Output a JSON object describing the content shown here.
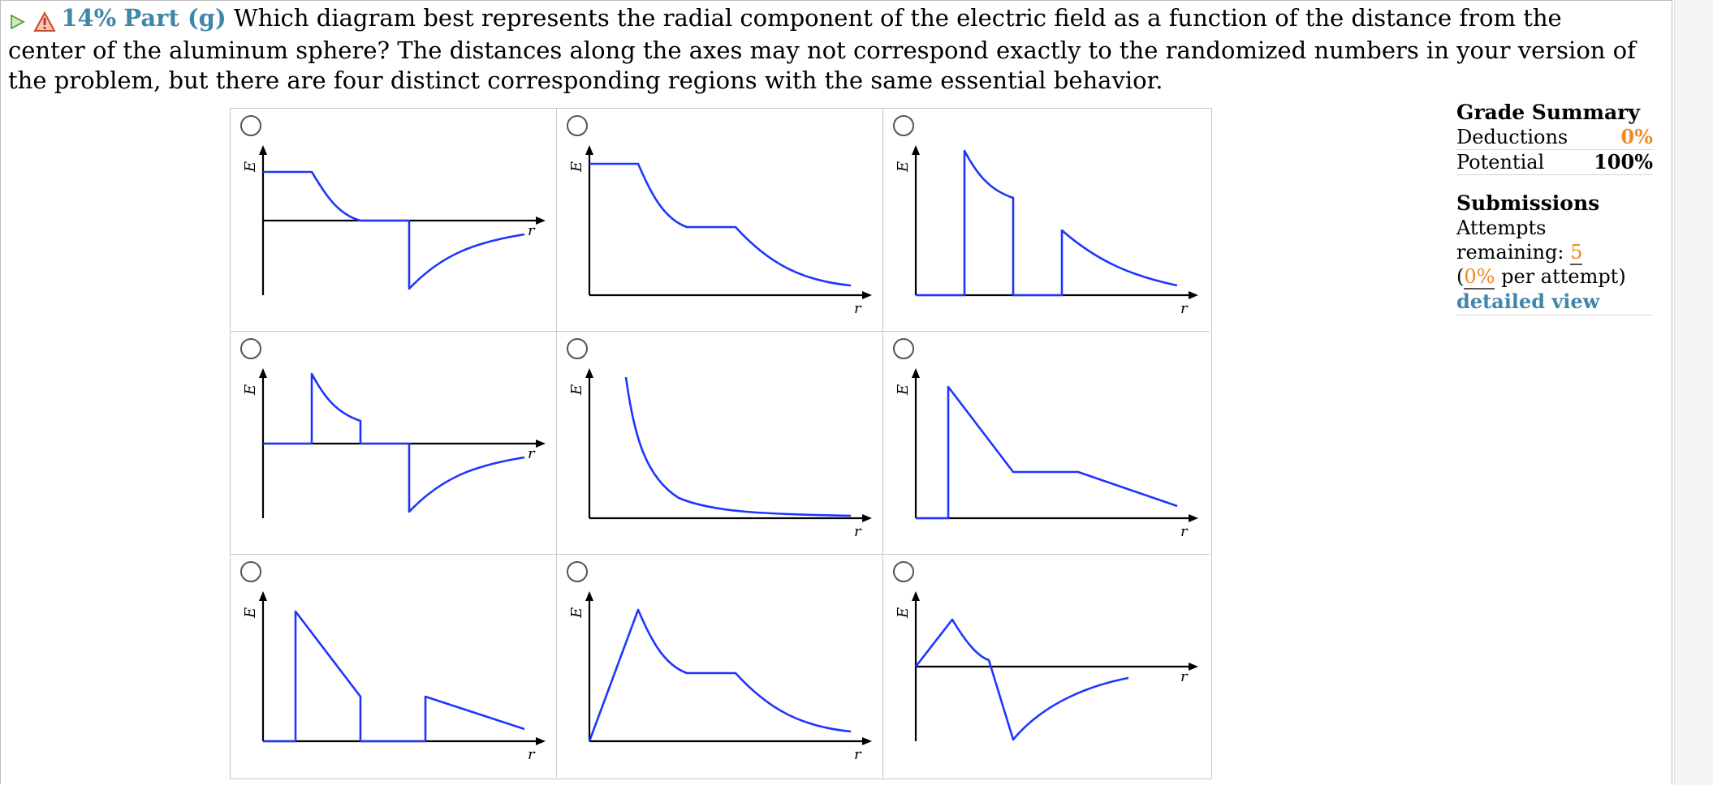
{
  "question": {
    "percent": "14%",
    "part": "Part (g)",
    "text": "Which diagram best represents the radial component of the electric field as a function of the distance from the center of the aluminum sphere? The distances along the axes may not correspond exactly to the randomized numbers in your version of the problem, but there are four distinct corresponding regions with the same essential behavior."
  },
  "plots": {
    "y_label": "E",
    "x_label": "r"
  },
  "grade_summary": {
    "title": "Grade Summary",
    "deductions_label": "Deductions",
    "deductions_value": "0%",
    "potential_label": "Potential",
    "potential_value": "100%"
  },
  "submissions": {
    "title": "Submissions",
    "attempts_label": "Attempts remaining:",
    "attempts_value": "5",
    "per_attempt_open": "(",
    "per_attempt_value": "0%",
    "per_attempt_label": "per attempt)",
    "detail_link": "detailed view"
  },
  "colors": {
    "accent": "#3f86a8",
    "orange": "#f08a24",
    "curve": "#1f35ff"
  },
  "icons": [
    "play-triangle-icon",
    "warning-icon",
    "radio-button-icon"
  ]
}
